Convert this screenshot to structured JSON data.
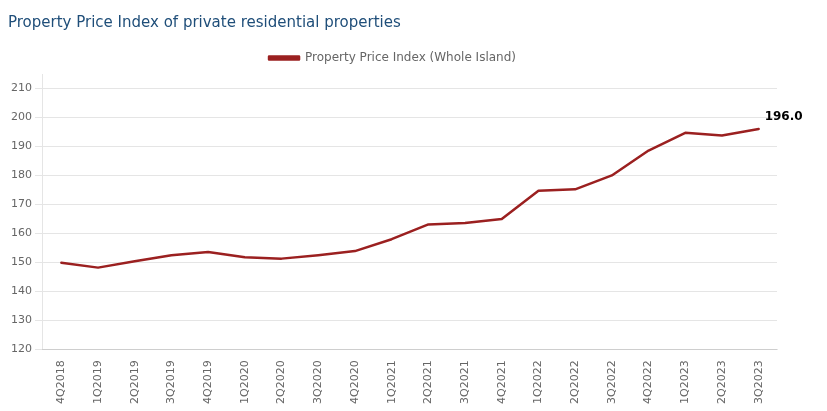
{
  "chart_data": {
    "type": "line",
    "title": "Property Price Index of private residential properties",
    "categories": [
      "4Q2018",
      "1Q2019",
      "2Q2019",
      "3Q2019",
      "4Q2019",
      "1Q2020",
      "2Q2020",
      "3Q2020",
      "4Q2020",
      "1Q2021",
      "2Q2021",
      "3Q2021",
      "4Q2021",
      "1Q2022",
      "2Q2022",
      "3Q2022",
      "4Q2022",
      "1Q2023",
      "2Q2023",
      "3Q2023"
    ],
    "series": [
      {
        "name": "Property Price Index (Whole Island)",
        "color": "#9B2020",
        "values": [
          149.9,
          148.2,
          150.4,
          152.5,
          153.6,
          151.8,
          151.3,
          152.5,
          153.9,
          158.0,
          163.1,
          163.6,
          165.0,
          174.7,
          175.2,
          180.0,
          188.6,
          194.7,
          193.8,
          196.0
        ]
      }
    ],
    "annotations": [
      "196.0"
    ],
    "ylim": [
      120,
      215
    ],
    "yticks": [
      120,
      130,
      140,
      150,
      160,
      170,
      180,
      190,
      200,
      210
    ],
    "grid": "y",
    "legend": "top"
  }
}
